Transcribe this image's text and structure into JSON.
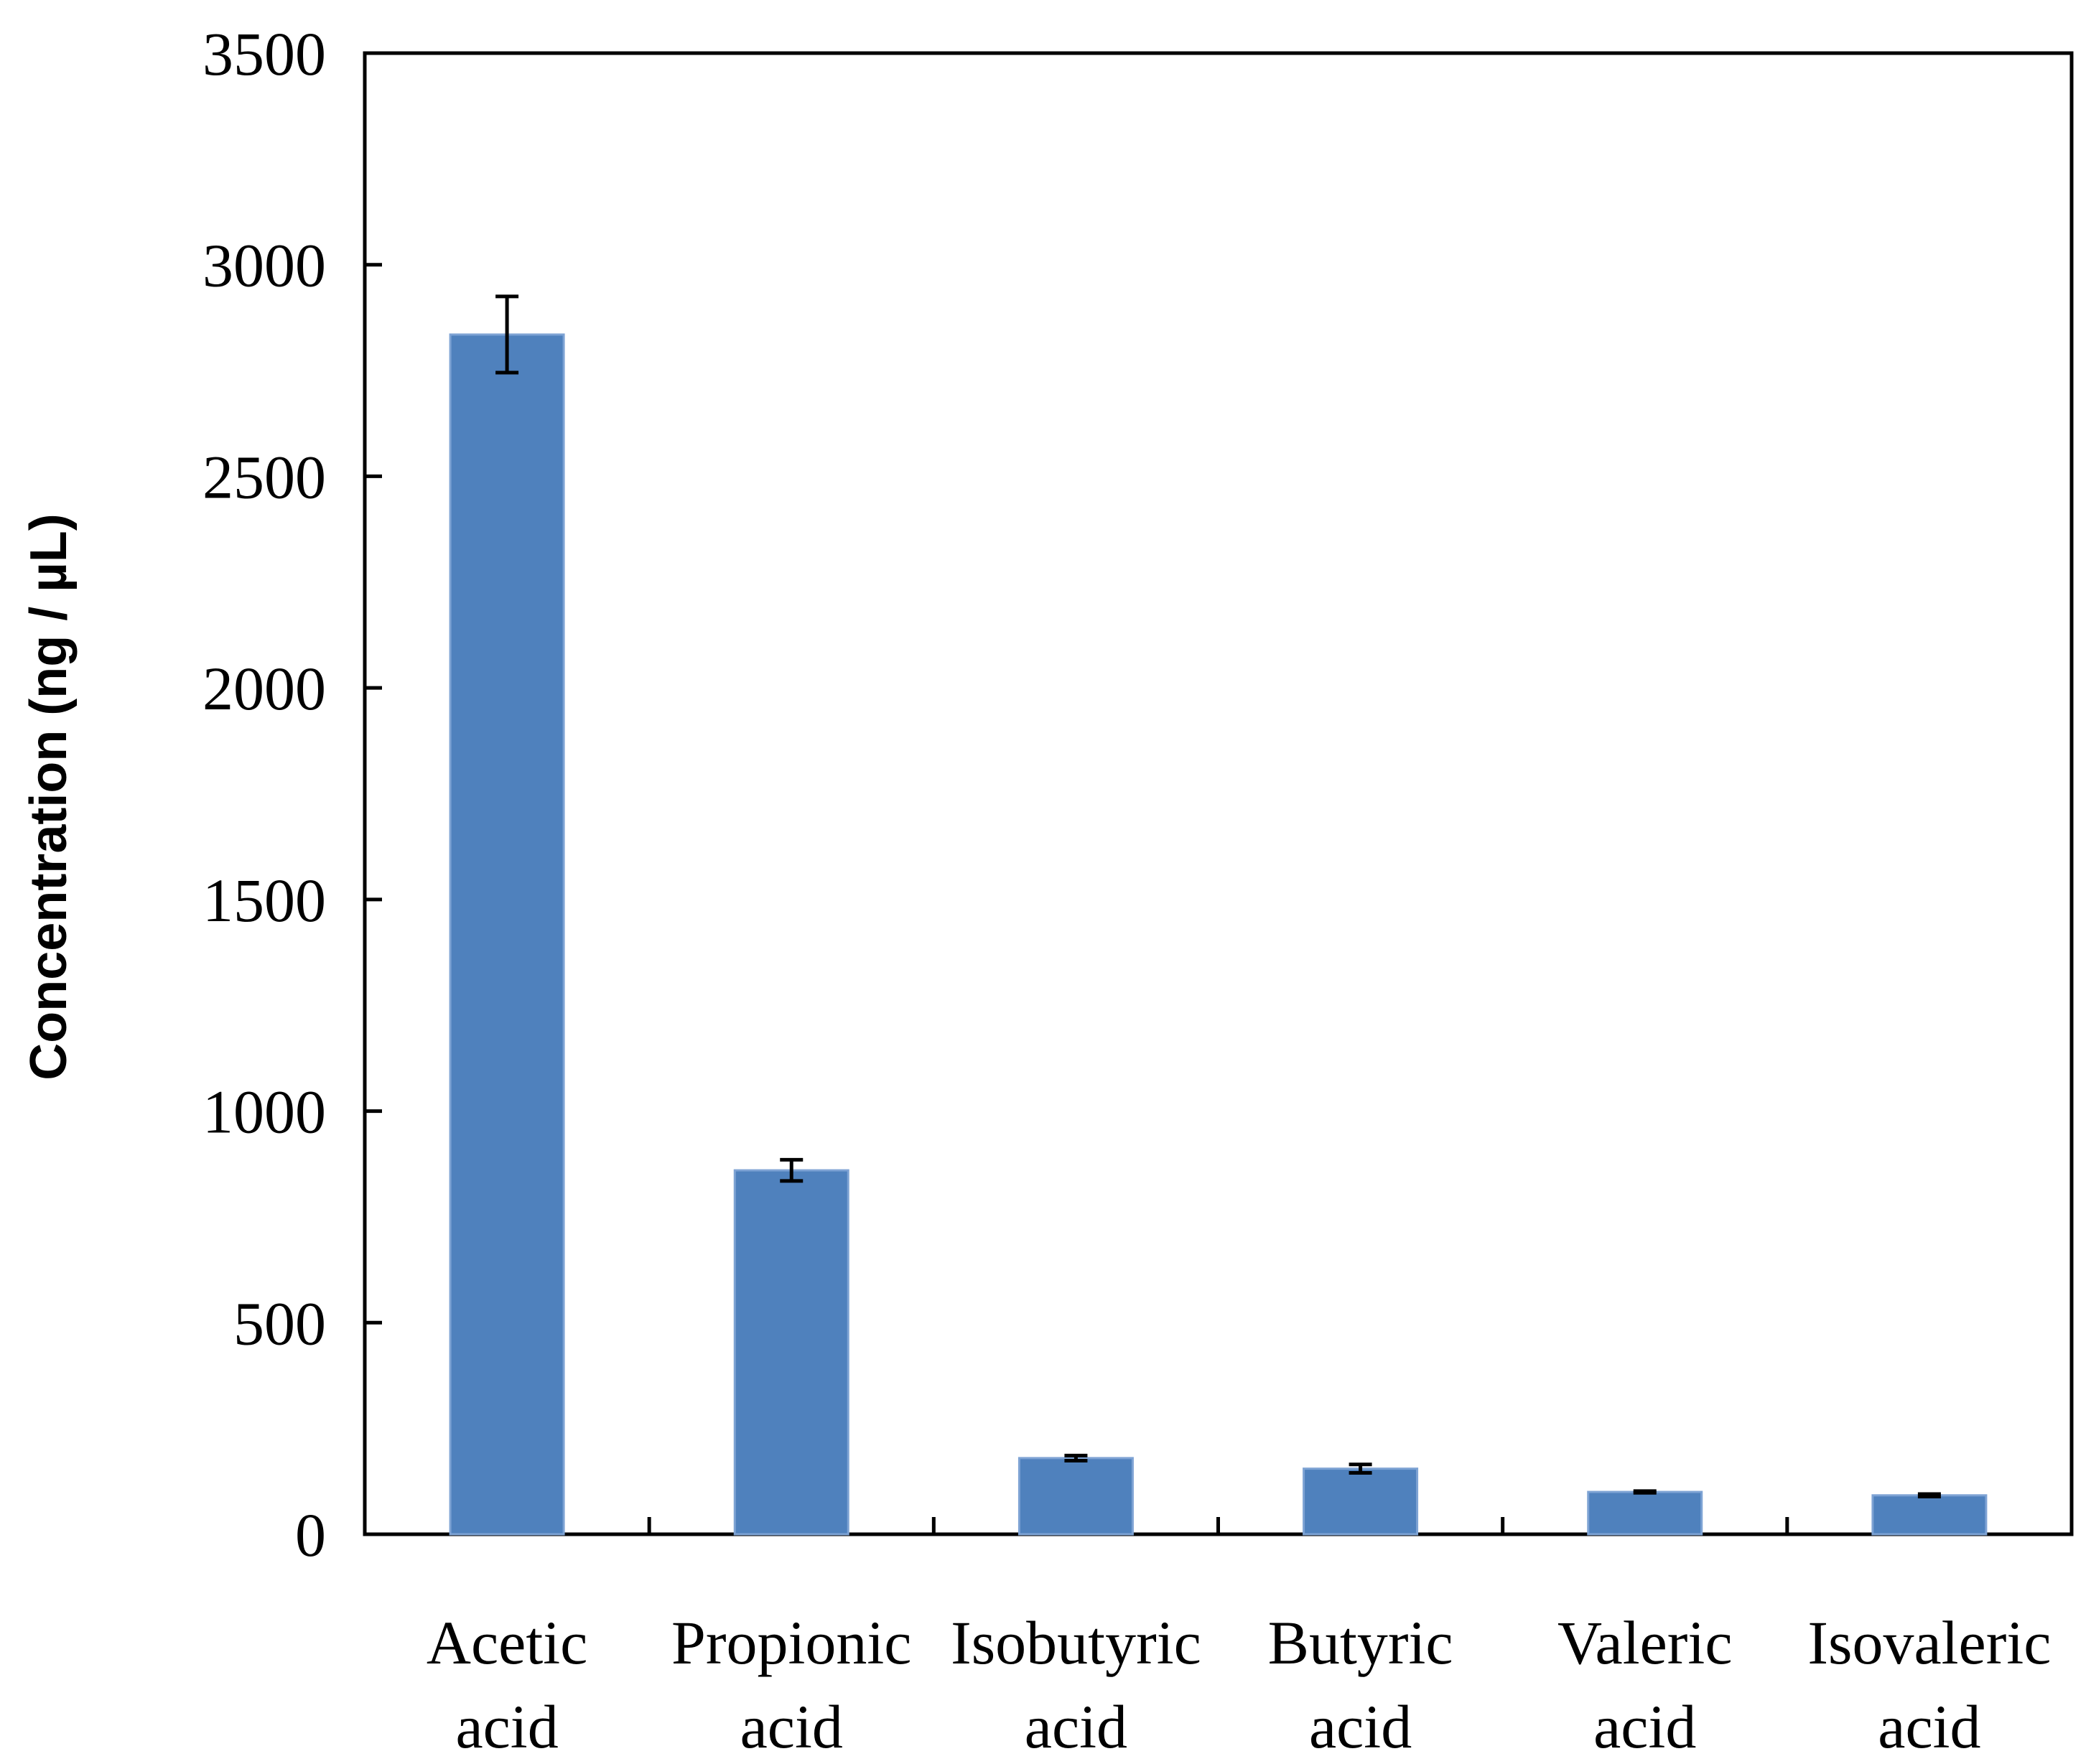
{
  "chart_data": {
    "type": "bar",
    "title": "",
    "xlabel": "",
    "ylabel": "Concentration (ng / µL)",
    "ylim": [
      0,
      3500
    ],
    "yticks": [
      0,
      500,
      1000,
      1500,
      2000,
      2500,
      3000,
      3500
    ],
    "grid": false,
    "legend": "none",
    "categories": [
      [
        "Acetic",
        "acid"
      ],
      [
        "Propionic",
        "acid"
      ],
      [
        "Isobutyric",
        "acid"
      ],
      [
        "Butyric",
        "acid"
      ],
      [
        "Valeric",
        "acid"
      ],
      [
        "Isovaleric",
        "acid"
      ]
    ],
    "series": [
      {
        "name": "Concentration",
        "color": "#4f81bd",
        "values": [
          2835,
          860,
          180,
          155,
          100,
          92
        ],
        "errors": [
          90,
          25,
          6,
          10,
          2,
          3
        ]
      }
    ]
  }
}
